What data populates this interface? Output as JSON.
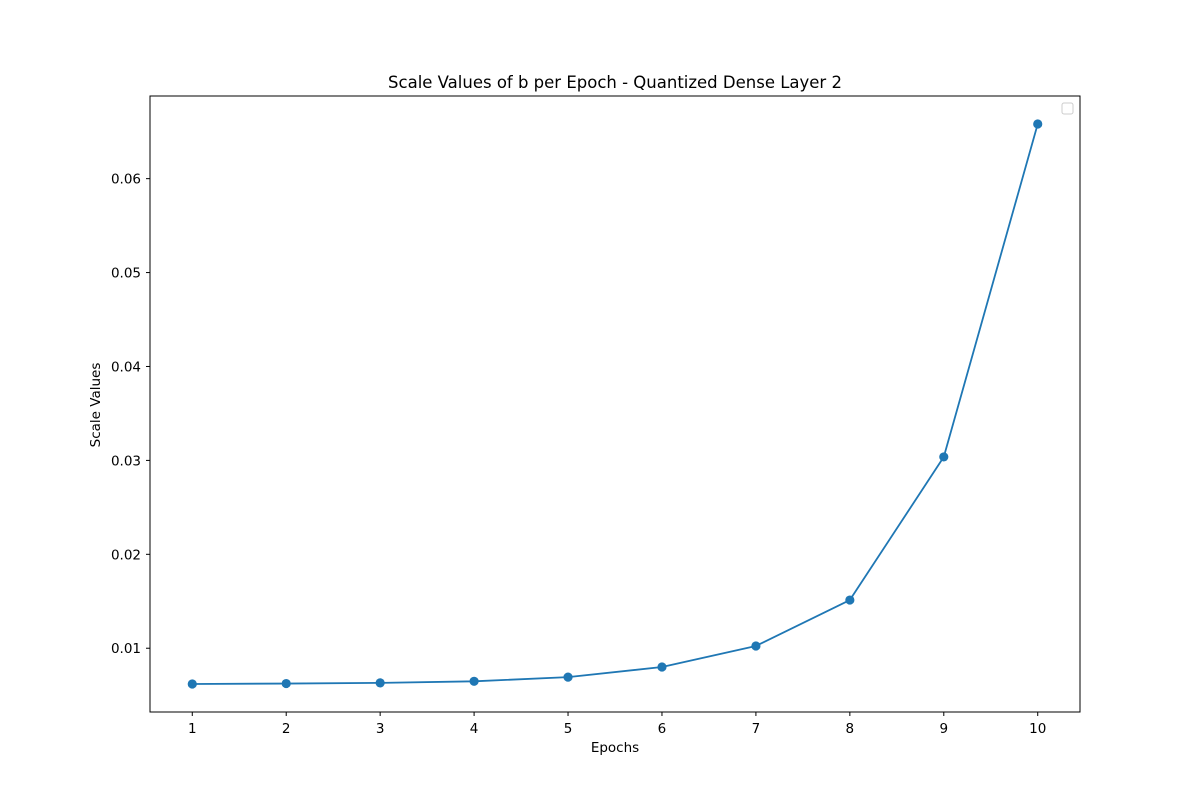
{
  "chart_data": {
    "type": "line",
    "title": "Scale Values of b per Epoch - Quantized Dense Layer 2",
    "xlabel": "Epochs",
    "ylabel": "Scale Values",
    "x": [
      1,
      2,
      3,
      4,
      5,
      6,
      7,
      8,
      9,
      10
    ],
    "series": [
      {
        "values": [
          0.00619,
          0.00624,
          0.00631,
          0.00648,
          0.00692,
          0.008,
          0.01024,
          0.01513,
          0.03037,
          0.06582
        ],
        "color": "#1f77b4",
        "marker": "circle"
      }
    ],
    "xlim": [
      0.55,
      10.45
    ],
    "ylim": [
      0.00321,
      0.0688
    ],
    "xticks": [
      1,
      2,
      3,
      4,
      5,
      6,
      7,
      8,
      9,
      10
    ],
    "xtick_labels": [
      "1",
      "2",
      "3",
      "4",
      "5",
      "6",
      "7",
      "8",
      "9",
      "10"
    ],
    "yticks": [
      0.01,
      0.02,
      0.03,
      0.04,
      0.05,
      0.06
    ],
    "ytick_labels": [
      "0.01",
      "0.02",
      "0.03",
      "0.04",
      "0.05",
      "0.06"
    ],
    "grid": false,
    "legend": {
      "placement": "top-right",
      "entries": []
    }
  }
}
